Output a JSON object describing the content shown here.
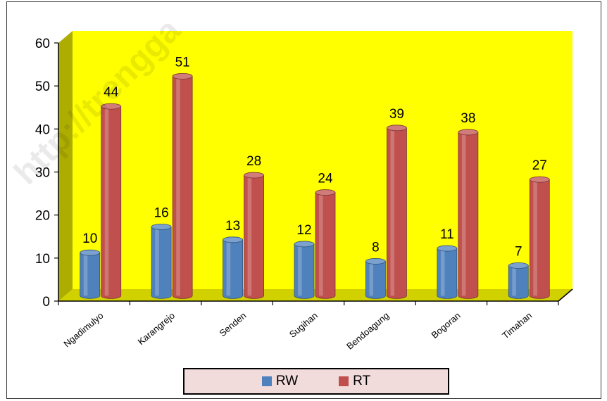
{
  "chart_data": {
    "type": "bar",
    "categories": [
      "Ngadimulyo",
      "Karangrejo",
      "Senden",
      "Sugihan",
      "Bendoagung",
      "Bogoran",
      "Timahan"
    ],
    "series": [
      {
        "name": "RW",
        "values": [
          10,
          16,
          13,
          12,
          8,
          11,
          7
        ],
        "color": "#4f81bd"
      },
      {
        "name": "RT",
        "values": [
          44,
          51,
          28,
          24,
          39,
          38,
          27
        ],
        "color": "#c0504d"
      }
    ],
    "yticks": [
      "0",
      "10",
      "20",
      "30",
      "40",
      "50",
      "60"
    ],
    "ylim": [
      0,
      60
    ],
    "wall_color": "#ffff00",
    "legend_placement": "bottom",
    "grid": false,
    "three_d": true
  },
  "watermark": "http://trengga"
}
